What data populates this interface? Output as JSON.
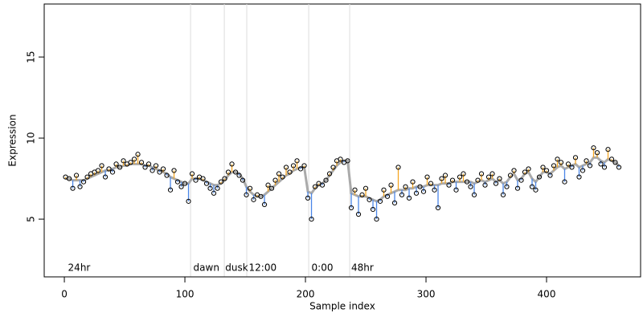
{
  "chart_data": {
    "type": "scatter",
    "x_label": "Sample index",
    "y_label": "Expression",
    "xlim": [
      -16.7,
      478
    ],
    "ylim": [
      1.44,
      18.27
    ],
    "xticks": [
      0,
      100,
      200,
      300,
      400
    ],
    "yticks": [
      5,
      10,
      15
    ],
    "point_color": "#000000",
    "trend_color": "#aaaaaa",
    "above_color": "#f5a623",
    "below_color": "#4a86e8",
    "vline_color": "#dddddd",
    "annotation_color": "#aaaaaa",
    "vlines": [
      104.7,
      132.7,
      151.3,
      202.7,
      236.7
    ],
    "annotations": [
      {
        "text": "24hr",
        "x": 3
      },
      {
        "text": "dawn",
        "x": 107
      },
      {
        "text": "dusk",
        "x": 133.5
      },
      {
        "text": "12:00",
        "x": 153
      },
      {
        "text": "0:00",
        "x": 205
      },
      {
        "text": "48hr",
        "x": 238
      }
    ],
    "annotation_y": 1.98,
    "x": [
      1,
      4,
      7,
      10,
      13,
      16,
      19,
      22,
      25,
      28,
      31,
      34,
      37,
      40,
      43,
      46,
      49,
      52,
      55,
      58,
      61,
      64,
      67,
      70,
      73,
      76,
      79,
      82,
      85,
      88,
      91,
      94,
      97,
      100,
      103,
      106,
      109,
      112,
      115,
      118,
      121,
      124,
      127,
      130,
      133,
      136,
      139,
      142,
      145,
      148,
      151,
      154,
      157,
      160,
      163,
      166,
      169,
      172,
      175,
      178,
      181,
      184,
      187,
      190,
      193,
      196,
      199,
      202,
      205,
      208,
      211,
      214,
      217,
      220,
      223,
      226,
      229,
      232,
      235,
      238,
      241,
      244,
      247,
      250,
      253,
      256,
      259,
      262,
      265,
      268,
      271,
      274,
      277,
      280,
      283,
      286,
      289,
      292,
      295,
      298,
      301,
      304,
      307,
      310,
      313,
      316,
      319,
      322,
      325,
      328,
      331,
      334,
      337,
      340,
      343,
      346,
      349,
      352,
      355,
      358,
      361,
      364,
      367,
      370,
      373,
      376,
      379,
      382,
      385,
      388,
      391,
      394,
      397,
      400,
      403,
      406,
      409,
      412,
      415,
      418,
      421,
      424,
      427,
      430,
      433,
      436,
      439,
      442,
      445,
      448,
      451,
      454,
      457,
      460
    ],
    "values": [
      7.6,
      7.5,
      6.9,
      7.7,
      7.0,
      7.3,
      7.6,
      7.8,
      7.9,
      8.0,
      8.3,
      7.6,
      8.1,
      7.9,
      8.4,
      8.2,
      8.6,
      8.4,
      8.5,
      8.7,
      9.0,
      8.5,
      8.2,
      8.4,
      8.0,
      8.3,
      7.9,
      8.1,
      7.7,
      6.8,
      8.0,
      7.3,
      7.0,
      7.2,
      6.1,
      7.8,
      7.4,
      7.6,
      7.5,
      7.2,
      6.9,
      6.6,
      6.9,
      7.3,
      7.5,
      7.9,
      8.4,
      7.9,
      7.7,
      7.4,
      6.5,
      6.9,
      6.2,
      6.5,
      6.4,
      5.9,
      7.1,
      6.9,
      7.4,
      7.8,
      7.6,
      8.2,
      7.9,
      8.3,
      8.6,
      8.1,
      8.3,
      6.3,
      5.0,
      7.0,
      7.2,
      7.1,
      7.4,
      7.8,
      8.2,
      8.6,
      8.7,
      8.5,
      8.6,
      5.7,
      6.8,
      5.3,
      6.5,
      6.9,
      6.2,
      5.6,
      5.0,
      6.1,
      6.8,
      6.4,
      7.1,
      6.0,
      8.2,
      6.5,
      7.0,
      6.3,
      7.3,
      6.6,
      7.0,
      6.7,
      7.6,
      7.2,
      6.8,
      5.7,
      7.5,
      7.7,
      7.1,
      7.4,
      6.8,
      7.6,
      7.8,
      7.3,
      7.0,
      6.5,
      7.4,
      7.8,
      7.1,
      7.6,
      7.8,
      7.2,
      7.5,
      6.5,
      7.0,
      7.7,
      8.0,
      6.9,
      7.4,
      7.9,
      8.1,
      7.0,
      6.8,
      7.6,
      8.2,
      8.0,
      7.7,
      8.3,
      8.7,
      8.5,
      7.3,
      8.4,
      8.2,
      8.8,
      7.6,
      8.0,
      8.6,
      8.3,
      9.4,
      9.1,
      8.4,
      8.2,
      9.3,
      8.7,
      8.5,
      8.2
    ],
    "trend": [
      7.5,
      7.5,
      7.4,
      7.4,
      7.4,
      7.4,
      7.5,
      7.6,
      7.7,
      7.8,
      7.9,
      8.0,
      8.0,
      8.1,
      8.2,
      8.2,
      8.3,
      8.3,
      8.4,
      8.4,
      8.4,
      8.4,
      8.3,
      8.3,
      8.2,
      8.1,
      8.0,
      7.9,
      7.8,
      7.6,
      7.5,
      7.4,
      7.3,
      7.2,
      7.2,
      7.5,
      7.5,
      7.5,
      7.4,
      7.3,
      7.2,
      7.1,
      7.1,
      7.2,
      7.4,
      7.7,
      7.9,
      7.9,
      7.8,
      7.5,
      7.0,
      6.7,
      6.5,
      6.4,
      6.4,
      6.5,
      6.7,
      6.9,
      7.1,
      7.3,
      7.5,
      7.7,
      7.8,
      8.0,
      8.1,
      8.2,
      8.2,
      6.7,
      6.6,
      6.9,
      7.1,
      7.2,
      7.4,
      7.7,
      8.0,
      8.3,
      8.5,
      8.6,
      8.6,
      6.6,
      6.5,
      6.4,
      6.4,
      6.4,
      6.3,
      6.2,
      6.1,
      6.2,
      6.4,
      6.5,
      6.6,
      6.7,
      6.8,
      6.8,
      6.8,
      6.9,
      6.9,
      7.0,
      7.0,
      7.0,
      7.1,
      7.1,
      7.1,
      7.1,
      7.2,
      7.2,
      7.2,
      7.3,
      7.3,
      7.3,
      7.3,
      7.3,
      7.3,
      7.2,
      7.3,
      7.4,
      7.3,
      7.4,
      7.5,
      7.3,
      7.4,
      7.2,
      7.3,
      7.6,
      7.8,
      7.4,
      7.5,
      7.8,
      7.9,
      7.5,
      7.3,
      7.6,
      7.9,
      7.9,
      7.8,
      8.0,
      8.2,
      8.3,
      8.1,
      8.2,
      8.3,
      8.4,
      8.2,
      8.3,
      8.4,
      8.5,
      8.8,
      8.8,
      8.6,
      8.5,
      8.7,
      8.6,
      8.5,
      8.3
    ]
  }
}
